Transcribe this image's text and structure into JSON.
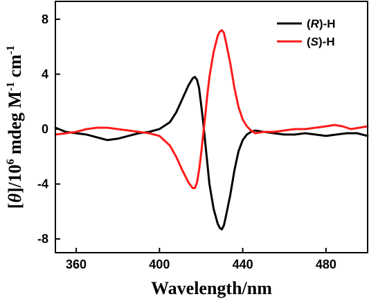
{
  "chart_data": {
    "type": "line",
    "xlabel": "Wavelength/nm",
    "ylabel_parts": [
      "[",
      "θ",
      "]/10",
      "6",
      " mdeg M",
      "-1",
      " cm",
      "-1"
    ],
    "xlim": [
      350,
      500
    ],
    "ylim": [
      -9.0,
      9.3
    ],
    "x_ticks": [
      360,
      400,
      440,
      480
    ],
    "x_tick_labels": [
      "360",
      "400",
      "440",
      "480"
    ],
    "y_ticks": [
      8,
      4,
      0,
      -4,
      -8
    ],
    "y_tick_labels": [
      "8",
      "4",
      "0",
      "-4",
      "-8"
    ],
    "legend_position": "top-right",
    "grid": false,
    "series": [
      {
        "name": "(R)-H",
        "legend": {
          "prefix": "(",
          "italic": "R",
          "suffix": ")-H"
        },
        "color": "#000000",
        "points": [
          [
            350,
            0.1
          ],
          [
            355,
            -0.2
          ],
          [
            360,
            -0.3
          ],
          [
            365,
            -0.4
          ],
          [
            370,
            -0.6
          ],
          [
            375,
            -0.8
          ],
          [
            380,
            -0.7
          ],
          [
            385,
            -0.5
          ],
          [
            390,
            -0.3
          ],
          [
            395,
            -0.2
          ],
          [
            400,
            0.0
          ],
          [
            405,
            0.5
          ],
          [
            408,
            1.2
          ],
          [
            411,
            2.2
          ],
          [
            414,
            3.2
          ],
          [
            416,
            3.7
          ],
          [
            417,
            3.8
          ],
          [
            418,
            3.6
          ],
          [
            419,
            3.0
          ],
          [
            420,
            1.8
          ],
          [
            421,
            0.5
          ],
          [
            422,
            -1.0
          ],
          [
            423,
            -2.5
          ],
          [
            424,
            -4.0
          ],
          [
            426,
            -5.8
          ],
          [
            428,
            -6.9
          ],
          [
            429,
            -7.2
          ],
          [
            430,
            -7.3
          ],
          [
            431,
            -7.0
          ],
          [
            432,
            -6.3
          ],
          [
            434,
            -4.8
          ],
          [
            436,
            -3.0
          ],
          [
            438,
            -1.6
          ],
          [
            440,
            -0.8
          ],
          [
            442,
            -0.4
          ],
          [
            444,
            -0.2
          ],
          [
            446,
            -0.1
          ],
          [
            450,
            -0.2
          ],
          [
            455,
            -0.3
          ],
          [
            460,
            -0.4
          ],
          [
            465,
            -0.4
          ],
          [
            470,
            -0.3
          ],
          [
            475,
            -0.4
          ],
          [
            480,
            -0.5
          ],
          [
            485,
            -0.4
          ],
          [
            490,
            -0.3
          ],
          [
            495,
            -0.3
          ],
          [
            500,
            -0.5
          ]
        ]
      },
      {
        "name": "(S)-H",
        "legend": {
          "prefix": "(",
          "italic": "S",
          "suffix": ")-H"
        },
        "color": "#ff1a1a",
        "points": [
          [
            350,
            -0.4
          ],
          [
            355,
            -0.3
          ],
          [
            360,
            -0.2
          ],
          [
            365,
            0.0
          ],
          [
            370,
            0.1
          ],
          [
            375,
            0.1
          ],
          [
            380,
            0.0
          ],
          [
            385,
            -0.1
          ],
          [
            390,
            -0.2
          ],
          [
            395,
            -0.3
          ],
          [
            400,
            -0.5
          ],
          [
            405,
            -1.2
          ],
          [
            408,
            -2.0
          ],
          [
            411,
            -3.0
          ],
          [
            414,
            -3.9
          ],
          [
            416,
            -4.3
          ],
          [
            417,
            -4.3
          ],
          [
            418,
            -3.9
          ],
          [
            419,
            -3.0
          ],
          [
            420,
            -1.8
          ],
          [
            421,
            -0.4
          ],
          [
            422,
            1.0
          ],
          [
            423,
            2.5
          ],
          [
            424,
            3.8
          ],
          [
            426,
            5.6
          ],
          [
            428,
            6.8
          ],
          [
            429,
            7.1
          ],
          [
            430,
            7.2
          ],
          [
            431,
            7.0
          ],
          [
            432,
            6.3
          ],
          [
            434,
            4.8
          ],
          [
            436,
            3.0
          ],
          [
            438,
            1.6
          ],
          [
            440,
            0.7
          ],
          [
            442,
            0.2
          ],
          [
            444,
            -0.1
          ],
          [
            446,
            -0.3
          ],
          [
            450,
            -0.2
          ],
          [
            455,
            -0.2
          ],
          [
            460,
            -0.1
          ],
          [
            465,
            0.0
          ],
          [
            470,
            0.0
          ],
          [
            475,
            0.1
          ],
          [
            480,
            0.2
          ],
          [
            484,
            0.3
          ],
          [
            488,
            0.2
          ],
          [
            492,
            0.0
          ],
          [
            496,
            0.1
          ],
          [
            500,
            0.2
          ]
        ]
      }
    ]
  }
}
